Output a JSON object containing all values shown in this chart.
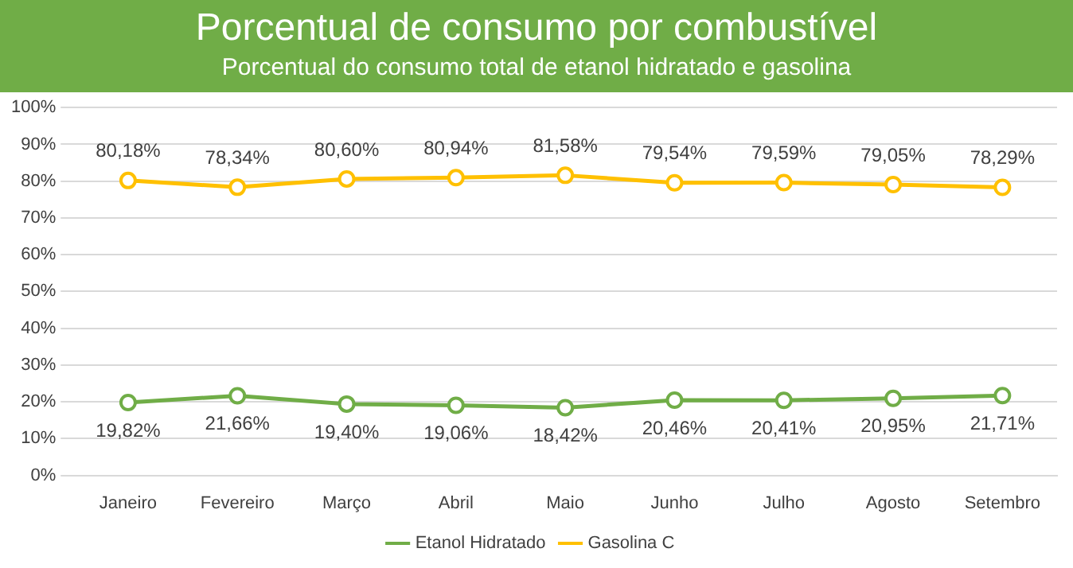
{
  "chart_data": {
    "type": "line",
    "title": "Porcentual de consumo por combustível",
    "subtitle": "Porcentual do consumo total de etanol hidratado e gasolina",
    "categories": [
      "Janeiro",
      "Fevereiro",
      "Março",
      "Abril",
      "Maio",
      "Junho",
      "Julho",
      "Agosto",
      "Setembro"
    ],
    "series": [
      {
        "name": "Etanol Hidratado",
        "color": "#70ad47",
        "values": [
          19.82,
          21.66,
          19.4,
          19.06,
          18.42,
          20.46,
          20.41,
          20.95,
          21.71
        ],
        "value_labels": [
          "19,82%",
          "21,66%",
          "19,40%",
          "19,06%",
          "18,42%",
          "20,46%",
          "20,41%",
          "20,95%",
          "21,71%"
        ]
      },
      {
        "name": "Gasolina C",
        "color": "#ffc000",
        "values": [
          80.18,
          78.34,
          80.6,
          80.94,
          81.58,
          79.54,
          79.59,
          79.05,
          78.29
        ],
        "value_labels": [
          "80,18%",
          "78,34%",
          "80,60%",
          "80,94%",
          "81,58%",
          "79,54%",
          "79,59%",
          "79,05%",
          "78,29%"
        ]
      }
    ],
    "ylim": [
      0,
      100
    ],
    "yticks": [
      {
        "value": 0,
        "label": "0%"
      },
      {
        "value": 10,
        "label": "10%"
      },
      {
        "value": 20,
        "label": "20%"
      },
      {
        "value": 30,
        "label": "30%"
      },
      {
        "value": 40,
        "label": "40%"
      },
      {
        "value": 50,
        "label": "50%"
      },
      {
        "value": 60,
        "label": "60%"
      },
      {
        "value": 70,
        "label": "70%"
      },
      {
        "value": 80,
        "label": "80%"
      },
      {
        "value": 90,
        "label": "90%"
      },
      {
        "value": 100,
        "label": "100%"
      }
    ],
    "grid": "y",
    "legend": "bottom",
    "marker": "circle",
    "line_style": "solid"
  }
}
